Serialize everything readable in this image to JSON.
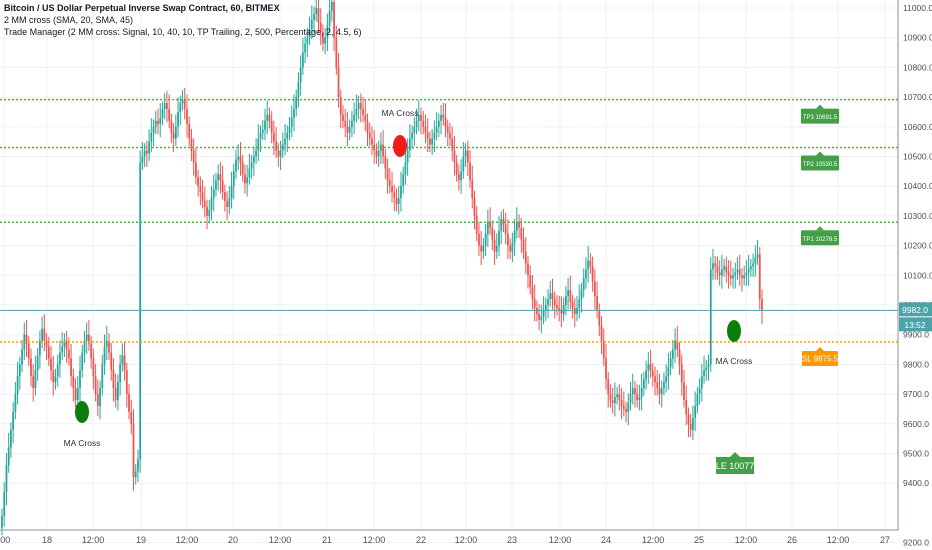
{
  "header": {
    "symbol_line": "Bitcoin / US Dollar Perpetual Inverse Swap Contract, 60, BITMEX",
    "indicator_1": "2 MM cross (SMA, 20, SMA, 45)",
    "indicator_2": "Trade Manager (2 MM cross: Signal, 10, 40, 10, TP Trailing, 2, 500, Percentage, 2, 4.5, 6)"
  },
  "colors": {
    "up": "#26a69a",
    "down": "#ef5350",
    "grid": "#eef0f3",
    "tp_line": "#4caf50",
    "sl_line": "#ff9800",
    "price_line": "#4ba3a8",
    "signal_buy": "#0a7d0a",
    "signal_sell": "#f21b1b"
  },
  "chart_data": {
    "type": "candlestick",
    "title": "Bitcoin / US Dollar Perpetual Inverse Swap Contract, 60, BITMEX",
    "ylim": [
      9185,
      11045
    ],
    "y_ticks": [
      9200.0,
      9400.0,
      9500.0,
      9600.0,
      9700.0,
      9800.0,
      9900.0,
      10000.0,
      10100.0,
      10200.0,
      10300.0,
      10400.0,
      10500.0,
      10600.0,
      10700.0,
      10800.0,
      10900.0,
      11000.0
    ],
    "x_tick_labels": [
      ":00",
      "18",
      "12:00",
      "19",
      "12:00",
      "20",
      "12:00",
      "21",
      "12:00",
      "22",
      "12:00",
      "23",
      "12:00",
      "24",
      "12:00",
      "25",
      "12:00",
      "26",
      "12:00",
      "27"
    ],
    "series": [
      {
        "close": [
          9290,
          9370,
          9460,
          9520,
          9580,
          9640,
          9700,
          9760,
          9800,
          9850,
          9900,
          9870,
          9820,
          9760,
          9720,
          9780,
          9830,
          9880,
          9920,
          9880,
          9860,
          9820,
          9780,
          9740,
          9760,
          9800,
          9840,
          9860,
          9880,
          9850,
          9820,
          9760,
          9720,
          9680,
          9720,
          9780,
          9840,
          9880,
          9900,
          9870,
          9820,
          9760,
          9700,
          9660,
          9720,
          9800,
          9860,
          9880,
          9840,
          9780,
          9720,
          9680,
          9740,
          9800,
          9830,
          9780,
          9700,
          9640,
          9600,
          9420,
          9440,
          9480,
          10480,
          10500,
          10520,
          10510,
          10550,
          10580,
          10600,
          10620,
          10610,
          10630,
          10660,
          10680,
          10660,
          10620,
          10580,
          10560,
          10600,
          10650,
          10680,
          10690,
          10660,
          10610,
          10560,
          10520,
          10480,
          10430,
          10400,
          10380,
          10350,
          10330,
          10300,
          10320,
          10360,
          10390,
          10420,
          10440,
          10420,
          10380,
          10350,
          10330,
          10360,
          10400,
          10450,
          10490,
          10500,
          10480,
          10440,
          10410,
          10430,
          10460,
          10480,
          10500,
          10520,
          10560,
          10580,
          10590,
          10620,
          10640,
          10620,
          10580,
          10550,
          10520,
          10500,
          10520,
          10540,
          10560,
          10580,
          10600,
          10630,
          10660,
          10700,
          10750,
          10800,
          10850,
          10880,
          10900,
          10930,
          10960,
          10980,
          11000,
          10950,
          10920,
          10880,
          10900,
          10940,
          10990,
          11020,
          10900,
          10800,
          10700,
          10640,
          10620,
          10600,
          10580,
          10600,
          10620,
          10640,
          10660,
          10680,
          10660,
          10640,
          10620,
          10580,
          10560,
          10540,
          10520,
          10500,
          10520,
          10540,
          10500,
          10460,
          10420,
          10400,
          10380,
          10360,
          10340,
          10360,
          10400,
          10440,
          10480,
          10520,
          10560,
          10580,
          10600,
          10620,
          10640,
          10620,
          10600,
          10580,
          10560,
          10540,
          10560,
          10580,
          10600,
          10620,
          10640,
          10630,
          10600,
          10580,
          10560,
          10520,
          10480,
          10440,
          10420,
          10450,
          10500,
          10520,
          10480,
          10420,
          10360,
          10300,
          10240,
          10200,
          10180,
          10200,
          10240,
          10280,
          10260,
          10220,
          10180,
          10200,
          10250,
          10290,
          10270,
          10240,
          10200,
          10180,
          10210,
          10250,
          10280,
          10260,
          10220,
          10180,
          10140,
          10100,
          10060,
          10020,
          9990,
          9970,
          9950,
          9960,
          9980,
          10000,
          10020,
          10040,
          10020,
          10000,
          9990,
          9980,
          9970,
          10000,
          10030,
          10050,
          10010,
          9990,
          9970,
          9990,
          10020,
          10050,
          10090,
          10120,
          10150,
          10130,
          10080,
          10030,
          9980,
          9930,
          9880,
          9820,
          9750,
          9700,
          9680,
          9670,
          9690,
          9700,
          9680,
          9660,
          9650,
          9640,
          9670,
          9700,
          9720,
          9700,
          9680,
          9690,
          9720,
          9750,
          9780,
          9800,
          9780,
          9760,
          9740,
          9720,
          9700,
          9720,
          9740,
          9760,
          9790,
          9820,
          9850,
          9880,
          9850,
          9800,
          9740,
          9680,
          9630,
          9600,
          9580,
          9620,
          9660,
          9700,
          9720,
          9760,
          9780,
          9790,
          9800,
          10120,
          10140,
          10130,
          10110,
          10100,
          10120,
          10130,
          10110,
          10100,
          10090,
          10100,
          10110,
          10120,
          10100,
          10090,
          10100,
          10110,
          10120,
          10130,
          10140,
          10160,
          10170,
          10020,
          9980
        ]
      }
    ],
    "horizontal_lines": [
      {
        "label": "TP3 10691.5",
        "value": 10691.5
      },
      {
        "label": "TP2 10530.5",
        "value": 10530.5
      },
      {
        "label": "TP1 10278.5",
        "value": 10278.5
      },
      {
        "label": "SL 9875.5",
        "value": 9875.5
      }
    ],
    "current_price": {
      "value": 9982.0,
      "label": "9982.0",
      "countdown": "13:52"
    },
    "entry_marker": {
      "label": "LE 10077"
    },
    "signals": [
      {
        "label": "MA Cross",
        "direction": "buy",
        "index": 39
      },
      {
        "label": "MA Cross",
        "direction": "sell",
        "index": 198
      },
      {
        "label": "MA Cross",
        "direction": "buy",
        "index": 362
      }
    ],
    "grid": true
  }
}
